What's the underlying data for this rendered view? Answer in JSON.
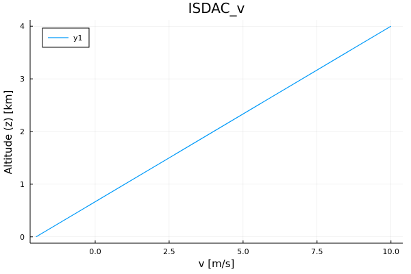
{
  "chart_data": {
    "type": "line",
    "title": "ISDAC_v",
    "xlabel": "v [m/s]",
    "ylabel": "Altitude (z) [km]",
    "xlim": [
      -2.2,
      10.4
    ],
    "ylim": [
      -0.12,
      4.12
    ],
    "x_ticks": [
      0.0,
      2.5,
      5.0,
      7.5,
      10.0
    ],
    "x_tick_labels": [
      "0.0",
      "2.5",
      "5.0",
      "7.5",
      "10.0"
    ],
    "y_ticks": [
      0,
      1,
      2,
      3,
      4
    ],
    "y_tick_labels": [
      "0",
      "1",
      "2",
      "3",
      "4"
    ],
    "grid": true,
    "legend": "top-left",
    "series": [
      {
        "name": "y1",
        "color": "#009af9",
        "points": [
          {
            "x": -2.0,
            "y": 0.0
          },
          {
            "x": 10.0,
            "y": 4.0
          }
        ]
      }
    ]
  }
}
